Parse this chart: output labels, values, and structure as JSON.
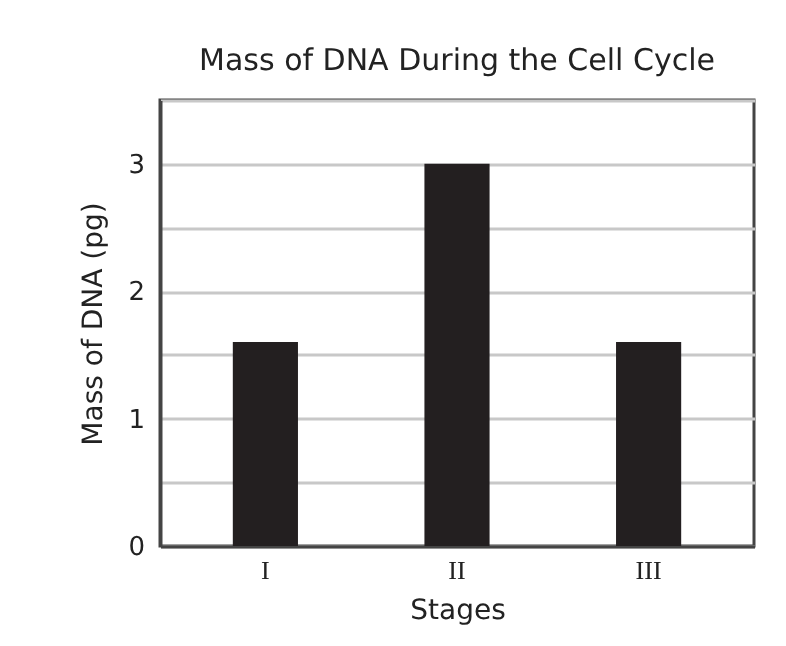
{
  "chart_data": {
    "type": "bar",
    "title": "Mass of DNA During the Cell Cycle",
    "xlabel": "Stages",
    "ylabel": "Mass of DNA (pg)",
    "categories": [
      "I",
      "II",
      "III"
    ],
    "values": [
      1.6,
      3,
      1.6
    ],
    "color": "#231f20",
    "ylim": [
      0,
      3.5
    ],
    "yticks": [
      0,
      {
        "value": 0.5,
        "label": null
      },
      1,
      {
        "value": 1.5,
        "label": null
      },
      2,
      {
        "value": 2.5,
        "label": null
      },
      3,
      {
        "value": 3.5,
        "label": null
      }
    ],
    "grid": "y"
  }
}
